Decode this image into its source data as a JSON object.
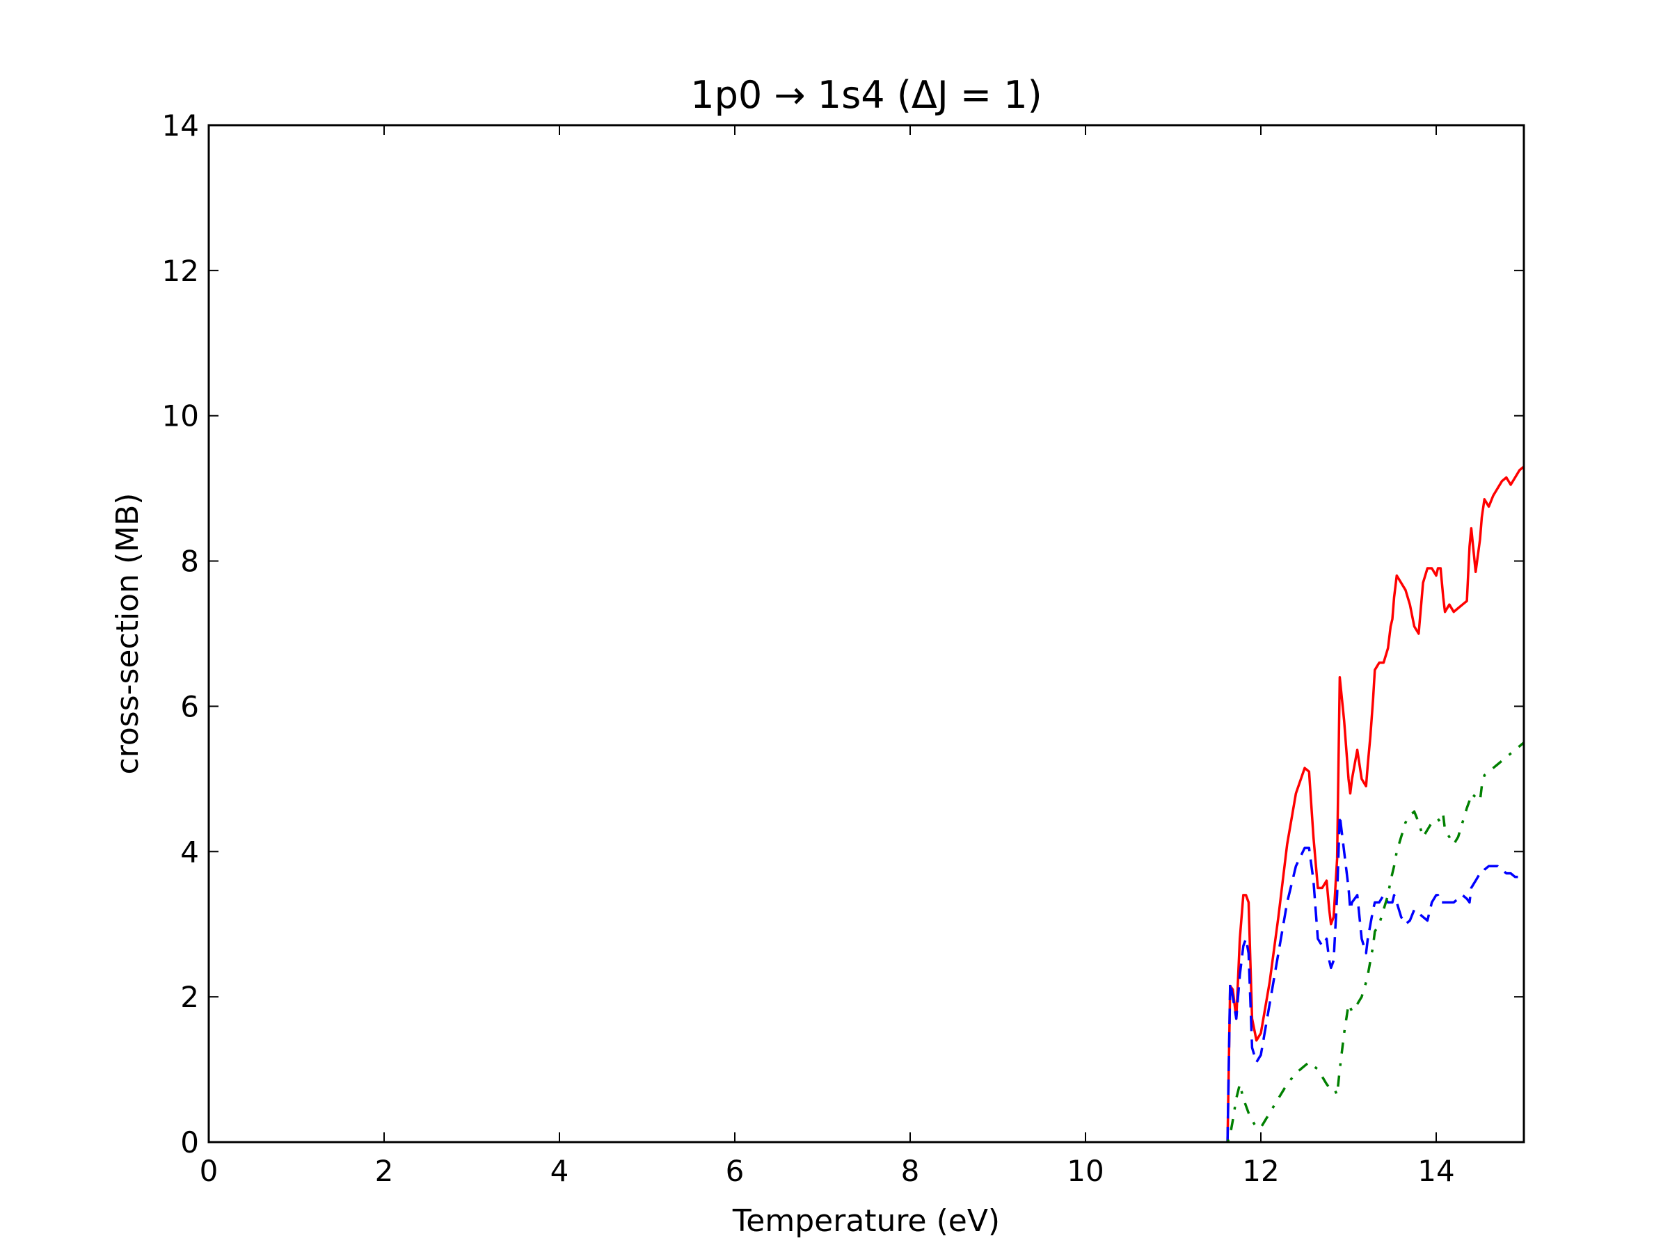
{
  "chart_data": {
    "type": "line",
    "title": "1p0 → 1s4  (ΔJ = 1)",
    "xlabel": "Temperature (eV)",
    "ylabel": "cross-section (MB)",
    "xlim": [
      0,
      15
    ],
    "ylim": [
      0,
      14
    ],
    "xticks": [
      0,
      2,
      4,
      6,
      8,
      10,
      12,
      14
    ],
    "yticks": [
      0,
      2,
      4,
      6,
      8,
      10,
      12,
      14
    ],
    "grid": false,
    "legend": "none",
    "series": [
      {
        "color": "#ff0000",
        "style": "solid",
        "x": [
          11.62,
          11.65,
          11.68,
          11.72,
          11.76,
          11.8,
          11.83,
          11.86,
          11.9,
          11.95,
          12.0,
          12.1,
          12.2,
          12.3,
          12.4,
          12.5,
          12.55,
          12.6,
          12.65,
          12.7,
          12.75,
          12.78,
          12.8,
          12.83,
          12.87,
          12.9,
          12.95,
          13.0,
          13.02,
          13.04,
          13.1,
          13.15,
          13.2,
          13.22,
          13.25,
          13.28,
          13.3,
          13.35,
          13.4,
          13.45,
          13.48,
          13.5,
          13.52,
          13.55,
          13.6,
          13.65,
          13.7,
          13.75,
          13.8,
          13.85,
          13.9,
          13.95,
          14.0,
          14.02,
          14.05,
          14.08,
          14.1,
          14.15,
          14.2,
          14.25,
          14.3,
          14.35,
          14.38,
          14.4,
          14.45,
          14.5,
          14.52,
          14.55,
          14.6,
          14.65,
          14.7,
          14.75,
          14.8,
          14.85,
          14.9,
          14.95,
          15.0
        ],
        "y": [
          0.0,
          2.15,
          2.1,
          1.7,
          2.8,
          3.4,
          3.4,
          3.3,
          1.7,
          1.4,
          1.5,
          2.2,
          3.1,
          4.1,
          4.8,
          5.15,
          5.1,
          4.2,
          3.5,
          3.5,
          3.6,
          3.2,
          3.0,
          3.1,
          3.9,
          6.4,
          5.8,
          5.0,
          4.8,
          5.0,
          5.4,
          5.0,
          4.9,
          5.2,
          5.6,
          6.1,
          6.5,
          6.6,
          6.6,
          6.8,
          7.1,
          7.2,
          7.5,
          7.8,
          7.7,
          7.6,
          7.4,
          7.1,
          7.0,
          7.7,
          7.9,
          7.9,
          7.8,
          7.9,
          7.9,
          7.5,
          7.3,
          7.4,
          7.3,
          7.35,
          7.4,
          7.45,
          8.2,
          8.45,
          7.85,
          8.3,
          8.6,
          8.85,
          8.75,
          8.9,
          9.0,
          9.1,
          9.15,
          9.05,
          9.15,
          9.25,
          9.3
        ]
      },
      {
        "color": "#0000ff",
        "style": "dashed",
        "x": [
          11.62,
          11.65,
          11.68,
          11.72,
          11.76,
          11.8,
          11.83,
          11.86,
          11.9,
          11.95,
          12.0,
          12.1,
          12.2,
          12.3,
          12.4,
          12.5,
          12.55,
          12.6,
          12.65,
          12.7,
          12.75,
          12.78,
          12.8,
          12.83,
          12.87,
          12.9,
          12.95,
          13.0,
          13.02,
          13.04,
          13.1,
          13.15,
          13.2,
          13.22,
          13.25,
          13.28,
          13.3,
          13.35,
          13.4,
          13.45,
          13.48,
          13.5,
          13.52,
          13.55,
          13.6,
          13.65,
          13.7,
          13.75,
          13.8,
          13.85,
          13.9,
          13.95,
          14.0,
          14.02,
          14.05,
          14.08,
          14.1,
          14.15,
          14.2,
          14.25,
          14.3,
          14.35,
          14.38,
          14.4,
          14.45,
          14.5,
          14.52,
          14.55,
          14.6,
          14.65,
          14.7,
          14.75,
          14.8,
          14.85,
          14.9,
          14.95,
          15.0
        ],
        "y": [
          0.0,
          2.2,
          2.0,
          1.7,
          2.3,
          2.7,
          2.8,
          2.6,
          1.3,
          1.1,
          1.2,
          1.9,
          2.6,
          3.3,
          3.8,
          4.05,
          4.05,
          3.6,
          2.8,
          2.7,
          2.8,
          2.5,
          2.4,
          2.5,
          3.4,
          4.5,
          4.0,
          3.5,
          3.2,
          3.3,
          3.4,
          2.8,
          2.6,
          2.8,
          3.0,
          3.2,
          3.3,
          3.3,
          3.4,
          3.3,
          3.3,
          3.3,
          3.4,
          3.3,
          3.1,
          3.0,
          3.05,
          3.2,
          3.15,
          3.1,
          3.05,
          3.3,
          3.4,
          3.4,
          3.3,
          3.3,
          3.3,
          3.3,
          3.3,
          3.35,
          3.4,
          3.35,
          3.3,
          3.5,
          3.6,
          3.7,
          3.7,
          3.75,
          3.8,
          3.8,
          3.8,
          3.75,
          3.7,
          3.7,
          3.65,
          3.65,
          3.65
        ]
      },
      {
        "color": "#008000",
        "style": "dashdot",
        "x": [
          11.62,
          11.65,
          11.68,
          11.72,
          11.76,
          11.8,
          11.83,
          11.86,
          11.9,
          11.95,
          12.0,
          12.1,
          12.2,
          12.3,
          12.4,
          12.5,
          12.55,
          12.6,
          12.65,
          12.7,
          12.75,
          12.78,
          12.8,
          12.83,
          12.87,
          12.9,
          12.95,
          13.0,
          13.02,
          13.04,
          13.1,
          13.15,
          13.2,
          13.22,
          13.25,
          13.28,
          13.3,
          13.35,
          13.4,
          13.45,
          13.48,
          13.5,
          13.52,
          13.55,
          13.6,
          13.65,
          13.7,
          13.75,
          13.8,
          13.85,
          13.9,
          13.95,
          14.0,
          14.02,
          14.05,
          14.08,
          14.1,
          14.15,
          14.2,
          14.25,
          14.3,
          14.35,
          14.38,
          14.4,
          14.45,
          14.5,
          14.52,
          14.55,
          14.6,
          14.65,
          14.7,
          14.75,
          14.8,
          14.85,
          14.9,
          14.95,
          15.0
        ],
        "y": [
          0.0,
          0.1,
          0.3,
          0.6,
          0.8,
          0.6,
          0.5,
          0.4,
          0.3,
          0.2,
          0.2,
          0.4,
          0.6,
          0.8,
          0.95,
          1.05,
          1.1,
          1.05,
          1.0,
          0.9,
          0.8,
          0.75,
          0.75,
          0.75,
          0.65,
          1.0,
          1.5,
          1.9,
          1.85,
          1.8,
          1.9,
          2.0,
          2.2,
          2.3,
          2.5,
          2.7,
          2.9,
          3.0,
          3.2,
          3.4,
          3.6,
          3.7,
          3.8,
          4.0,
          4.2,
          4.4,
          4.5,
          4.55,
          4.4,
          4.2,
          4.3,
          4.4,
          4.45,
          4.45,
          4.4,
          4.5,
          4.3,
          4.2,
          4.1,
          4.2,
          4.4,
          4.6,
          4.7,
          4.8,
          4.75,
          4.7,
          4.9,
          5.05,
          5.1,
          5.15,
          5.2,
          5.25,
          5.3,
          5.35,
          5.4,
          5.45,
          5.5
        ]
      }
    ]
  }
}
